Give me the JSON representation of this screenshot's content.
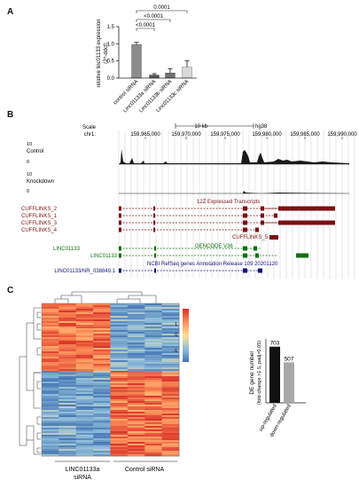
{
  "panels": {
    "a": "A",
    "b": "B",
    "c": "C"
  },
  "panel_a": {
    "chart_data": {
      "type": "bar",
      "categories": [
        "control siRNA",
        "Linc01133a siRNA",
        "Linc01133b siRNA",
        "Linc01133c siRNA"
      ],
      "values": [
        0.98,
        0.09,
        0.15,
        0.32
      ],
      "errors": [
        0.06,
        0.04,
        0.12,
        0.18
      ],
      "ylabel": "relative linc01133 expression",
      "ylabel2": "(2^-ddct)",
      "yticks": [
        "0.0",
        "0.5",
        "1.0",
        "1.5"
      ],
      "ylim": [
        0,
        1.5
      ],
      "colors": [
        "#8c8c8c",
        "#555555",
        "#707070",
        "#d8d8d8"
      ],
      "significance": [
        "<0.0001",
        "<0.0001",
        "0.0001"
      ]
    }
  },
  "panel_b": {
    "scale_label": "Scale",
    "scale_value": "10 kb",
    "assembly": "hg38",
    "chrom": "chr1:",
    "positions": [
      "159,965,000",
      "159,970,000",
      "159,975,000",
      "159,980,000",
      "159,985,000",
      "159,990,000"
    ],
    "tracks": {
      "control": "Control",
      "knockdown": "Knockdown",
      "control_max": "10",
      "control_min": "0",
      "knockdown_max": "10",
      "knockdown_min": "0"
    },
    "expressed_title": "12Z Expressed Transcripts",
    "cufflinks": [
      "CUFFLINKS_2",
      "CUFFLINKS_1",
      "CUFFLINKS_3",
      "CUFFLINKS_4",
      "CUFFLINKS_5"
    ],
    "gencode_title": "GENCODE V36",
    "gencode_genes": [
      "LINC01133",
      "LINC01133"
    ],
    "refseq_title": "NCBI RefSeq genes Annotation Release 109 20201120",
    "refseq_gene": "LINC01133/NR_038849.1",
    "colors": {
      "cufflinks": "#7b1010",
      "gencode": "#127012",
      "refseq": "#12127a"
    }
  },
  "panel_c": {
    "heatmap": {
      "group_labels": [
        "LINC01133a",
        "siRNA",
        "Control siRNA"
      ],
      "legend_ticks": [
        "1",
        "0",
        "-1"
      ],
      "colors": {
        "high": "#d73027",
        "mid": "#fee090",
        "low": "#4575b4"
      }
    },
    "bar_chart": {
      "chart_data": {
        "type": "bar",
        "categories": [
          "up-regulated",
          "down-regulated"
        ],
        "values": [
          703,
          507
        ],
        "ylabel": "DE gene number",
        "ylabel2": "(fold-change >1.5, padj>0.05)",
        "colors": [
          "#111111",
          "#a8a8a8"
        ]
      }
    }
  }
}
